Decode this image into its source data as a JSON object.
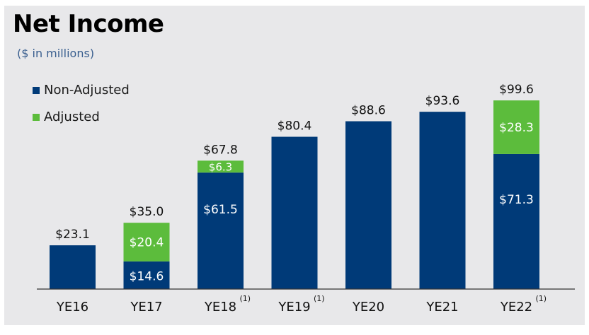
{
  "title": "Net Income",
  "subtitle": "($ in millions)",
  "colors": {
    "non_adjusted": "#003a78",
    "adjusted": "#5cbc3c"
  },
  "chart_data": {
    "type": "bar",
    "stacked": true,
    "categories": [
      "YE16",
      "YE17",
      "YE18",
      "YE19",
      "YE20",
      "YE21",
      "YE22"
    ],
    "footnotes": [
      "",
      "",
      "(1)",
      "(1)",
      "",
      "",
      "(1)"
    ],
    "series": [
      {
        "name": "Non-Adjusted",
        "values": [
          23.1,
          14.6,
          61.5,
          80.4,
          88.6,
          93.6,
          71.3
        ],
        "labels": [
          "",
          "$14.6",
          "$61.5",
          "",
          "",
          "",
          "$71.3"
        ]
      },
      {
        "name": "Adjusted",
        "values": [
          0,
          20.4,
          6.3,
          0,
          0,
          0,
          28.3
        ],
        "labels": [
          "",
          "$20.4",
          "$6.3",
          "",
          "",
          "",
          "$28.3"
        ]
      }
    ],
    "totals": [
      23.1,
      35.0,
      67.8,
      80.4,
      88.6,
      93.6,
      99.6
    ],
    "total_labels": [
      "$23.1",
      "$35.0",
      "$67.8",
      "$80.4",
      "$88.6",
      "$93.6",
      "$99.6"
    ],
    "title": "Net Income",
    "ylim": [
      0,
      100
    ],
    "grid": false,
    "legend_position": "top-left"
  }
}
